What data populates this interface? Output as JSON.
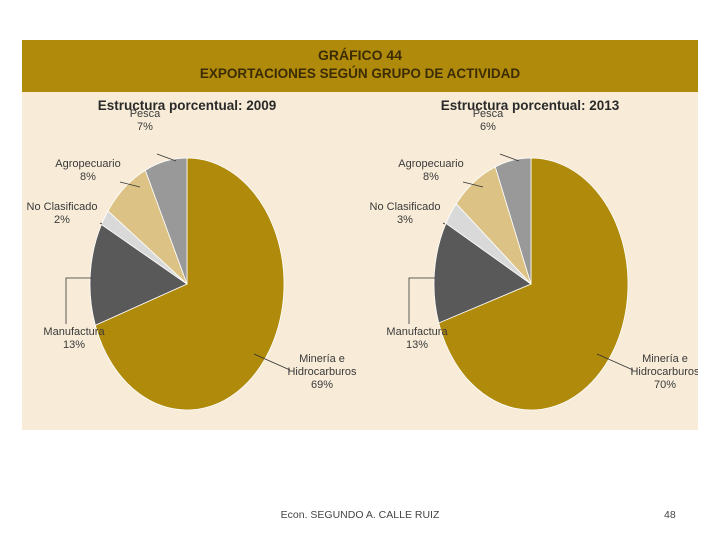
{
  "header": {
    "title": "GRÁFICO 44",
    "subtitle": "EXPORTACIONES SEGÚN GRUPO DE ACTIVIDAD"
  },
  "chart_data": [
    {
      "type": "pie",
      "title": "Estructura porcentual: 2009",
      "slices": [
        {
          "label_lines": [
            "Minería e",
            "Hidrocarburos"
          ],
          "value": 69,
          "display": "69%",
          "color": "#b08a0a"
        },
        {
          "label_lines": [
            "Manufactura"
          ],
          "value": 13,
          "display": "13%",
          "color": "#595959"
        },
        {
          "label_lines": [
            "No Clasificado"
          ],
          "value": 2,
          "display": "2%",
          "color": "#d9d9d9"
        },
        {
          "label_lines": [
            "Agropecuario"
          ],
          "value": 8,
          "display": "8%",
          "color": "#dcc385"
        },
        {
          "label_lines": [
            "Pesca"
          ],
          "value": 7,
          "display": "7%",
          "color": "#999999"
        }
      ]
    },
    {
      "type": "pie",
      "title": "Estructura porcentual: 2013",
      "slices": [
        {
          "label_lines": [
            "Minería e",
            "Hidrocarburos"
          ],
          "value": 70,
          "display": "70%",
          "color": "#b08a0a"
        },
        {
          "label_lines": [
            "Manufactura"
          ],
          "value": 13,
          "display": "13%",
          "color": "#595959"
        },
        {
          "label_lines": [
            "No Clasificado"
          ],
          "value": 3,
          "display": "3%",
          "color": "#d9d9d9"
        },
        {
          "label_lines": [
            "Agropecuario"
          ],
          "value": 8,
          "display": "8%",
          "color": "#dcc385"
        },
        {
          "label_lines": [
            "Pesca"
          ],
          "value": 6,
          "display": "6%",
          "color": "#999999"
        }
      ]
    }
  ],
  "footer": {
    "author": "Econ. SEGUNDO A. CALLE RUIZ",
    "page": "48"
  }
}
